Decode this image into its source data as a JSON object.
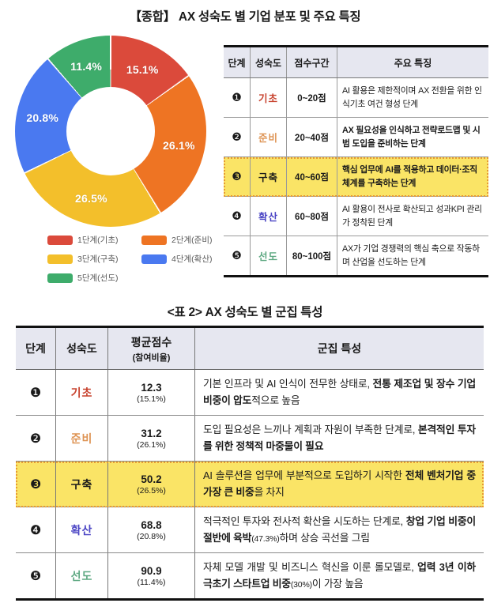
{
  "title": "【종합】 AX 성숙도 별 기업 분포 및 주요 특징",
  "chart_data": {
    "type": "pie",
    "subtype": "donut",
    "title": "AX 성숙도 별 기업 분포",
    "categories": [
      "1단계(기초)",
      "2단계(준비)",
      "3단계(구축)",
      "4단계(확산)",
      "5단계(선도)"
    ],
    "values": [
      15.1,
      26.1,
      26.5,
      20.8,
      11.4
    ],
    "labels": [
      "15.1%",
      "26.1%",
      "26.5%",
      "20.8%",
      "11.4%"
    ],
    "colors": [
      "#db4a3b",
      "#ee7423",
      "#f3bf2b",
      "#4a79f0",
      "#3eac6b"
    ],
    "start_angle_deg": 0,
    "direction": "clockwise",
    "legend_position": "bottom"
  },
  "table1": {
    "header": {
      "stage": "단계",
      "maturity": "성숙도",
      "range": "점수구간",
      "feature": "주요 특징"
    },
    "rows": [
      {
        "num": "❶",
        "maturity": "기초",
        "color": "#c8432f",
        "range": "0~20점",
        "feature": "AI 활용은 제한적이며 AX 전환을 위한 인식기초 여건 형성 단계",
        "bold": false,
        "highlight": false
      },
      {
        "num": "❷",
        "maturity": "준비",
        "color": "#de9455",
        "range": "20~40점",
        "feature": "AX 필요성을 인식하고 전략로드맵 및 시범 도입을 준비하는 단계",
        "bold": true,
        "highlight": false
      },
      {
        "num": "❸",
        "maturity": "구축",
        "color": "#1a1a1a",
        "range": "40~60점",
        "feature": "핵심 업무에 AI를 적용하고 데이터·조직 체계를 구축하는 단계",
        "bold": true,
        "highlight": true
      },
      {
        "num": "❹",
        "maturity": "확산",
        "color": "#4a44c4",
        "range": "60~80점",
        "feature": "AI 활용이 전사로 확산되고 성과KPI 관리가 정착된 단계",
        "bold": false,
        "highlight": false
      },
      {
        "num": "❺",
        "maturity": "선도",
        "color": "#5fa983",
        "range": "80~100점",
        "feature": "AX가 기업 경쟁력의 핵심 축으로 작동하며 산업을 선도하는 단계",
        "bold": false,
        "highlight": false
      }
    ]
  },
  "table2_title": "<표 2> AX 성숙도 별 군집 특성",
  "table2": {
    "header": {
      "stage": "단계",
      "maturity": "성숙도",
      "score": "평균점수",
      "score_sub": "(참여비율)",
      "feature": "군집 특성"
    },
    "rows": [
      {
        "num": "❶",
        "maturity": "기초",
        "color": "#c8432f",
        "score": "12.3",
        "share": "(15.1%)",
        "highlight": false,
        "segments": [
          {
            "t": "기본 인프라 및 AI 인식이 전무한 상태로, "
          },
          {
            "t": "전통 제조업 및 장수 기업 비중이 압도",
            "b": true
          },
          {
            "t": "적으로 높음"
          }
        ]
      },
      {
        "num": "❷",
        "maturity": "준비",
        "color": "#de9455",
        "score": "31.2",
        "share": "(26.1%)",
        "highlight": false,
        "segments": [
          {
            "t": "도입 필요성은 느끼나 계획과 자원이 부족한 단계로, "
          },
          {
            "t": "본격적인 투자를 위한 정책적 마중물이 필요",
            "b": true
          }
        ]
      },
      {
        "num": "❸",
        "maturity": "구축",
        "color": "#1a1a1a",
        "score": "50.2",
        "share": "(26.5%)",
        "highlight": true,
        "segments": [
          {
            "t": "AI 솔루션을 업무에 부분적으로 도입하기 시작한 "
          },
          {
            "t": "전체 벤처기업 중 가장 큰 비중",
            "b": true
          },
          {
            "t": "을 차지"
          }
        ]
      },
      {
        "num": "❹",
        "maturity": "확산",
        "color": "#4a44c4",
        "score": "68.8",
        "share": "(20.8%)",
        "highlight": false,
        "segments": [
          {
            "t": "적극적인 투자와 전사적 확산을 시도하는 단계로, "
          },
          {
            "t": "창업 기업 비중이 절반에 육박",
            "b": true
          },
          {
            "t": "(47.3%)",
            "small": true
          },
          {
            "t": "하며 상승 곡선을 그림"
          }
        ]
      },
      {
        "num": "❺",
        "maturity": "선도",
        "color": "#5fa983",
        "score": "90.9",
        "share": "(11.4%)",
        "highlight": false,
        "segments": [
          {
            "t": "자체 모델 개발 및 비즈니스 혁신을 이룬 롤모델로, "
          },
          {
            "t": "업력 3년 이하 극초기 스타트업 비중",
            "b": true
          },
          {
            "t": "(30%)",
            "small": true
          },
          {
            "t": "이 가장 높음"
          }
        ]
      }
    ]
  },
  "colors": {
    "header_bg": "#e6e7f0",
    "highlight_bg": "#fae466",
    "highlight_border": "#e89a33"
  }
}
